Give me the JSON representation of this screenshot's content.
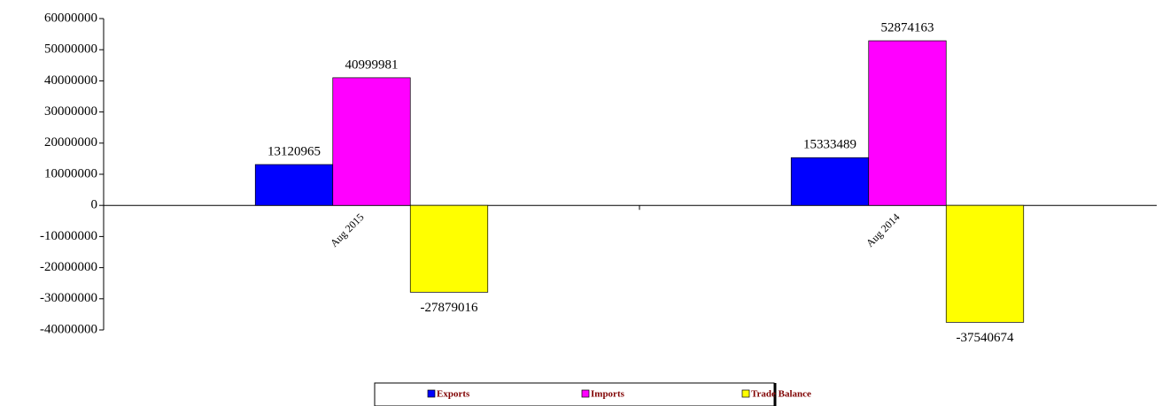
{
  "chart_data": {
    "type": "bar",
    "categories": [
      "Aug 2015",
      "Aug 2014"
    ],
    "series": [
      {
        "name": "Exports",
        "color": "#0000ff",
        "values": [
          13120965,
          15333489
        ]
      },
      {
        "name": "Imports",
        "color": "#ff00ff",
        "values": [
          40999981,
          52874163
        ]
      },
      {
        "name": "Trade Balance",
        "color": "#ffff00",
        "values": [
          -27879016,
          -37540674
        ]
      }
    ],
    "ylim": [
      -40000000,
      60000000
    ],
    "yticks": [
      -40000000,
      -30000000,
      -20000000,
      -10000000,
      0,
      10000000,
      20000000,
      30000000,
      40000000,
      50000000,
      60000000
    ],
    "legend": "bottom"
  }
}
